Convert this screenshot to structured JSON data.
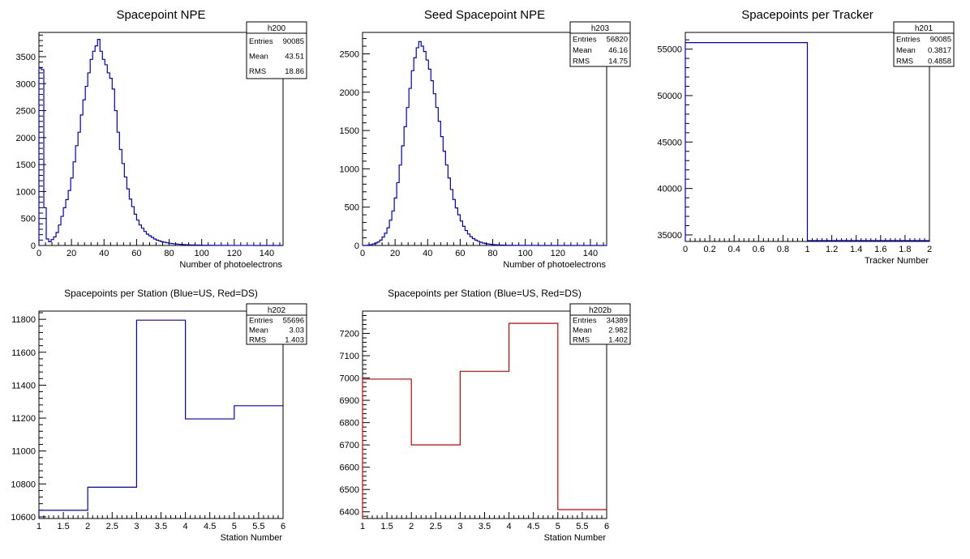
{
  "chart_data": [
    {
      "id": "h200",
      "type": "histogram",
      "title": "Spacepoint NPE",
      "xlabel": "Number of photoelectrons",
      "ylabel": "",
      "xlim": [
        0,
        150
      ],
      "ylim": [
        0,
        3950
      ],
      "xticks": [
        0,
        20,
        40,
        60,
        80,
        100,
        120,
        140
      ],
      "yticks": [
        0,
        500,
        1000,
        1500,
        2000,
        2500,
        3000,
        3500
      ],
      "line_color": "#0000cc",
      "bin_width": 1.5,
      "x_start": 0,
      "values": [
        3290,
        3260,
        700,
        120,
        70,
        110,
        160,
        240,
        380,
        540,
        700,
        850,
        1020,
        1250,
        1550,
        1850,
        2100,
        2420,
        2700,
        2950,
        3200,
        3450,
        3600,
        3700,
        3820,
        3600,
        3450,
        3350,
        3200,
        3100,
        2900,
        2500,
        2100,
        1780,
        1520,
        1270,
        1050,
        860,
        720,
        580,
        470,
        380,
        320,
        260,
        210,
        180,
        150,
        120,
        100,
        85,
        70,
        60,
        50,
        42,
        36,
        30,
        26,
        22,
        19,
        16,
        14,
        12,
        10,
        9,
        8,
        7,
        6,
        5,
        5,
        4,
        4,
        3,
        3,
        3,
        2,
        2,
        2,
        2,
        1,
        1,
        1,
        1,
        1,
        1,
        1,
        1,
        1,
        1,
        0,
        0,
        0,
        0,
        0,
        0,
        0,
        0,
        0,
        0,
        0,
        0
      ],
      "stats": {
        "name": "h200",
        "rows": [
          {
            "label": "Entries",
            "value": "90085"
          },
          {
            "label": "Mean",
            "value": "43.51"
          },
          {
            "label": "RMS",
            "value": "18.86"
          }
        ]
      }
    },
    {
      "id": "h203",
      "type": "histogram",
      "title": "Seed Spacepoint NPE",
      "xlabel": "Number of photoelectrons",
      "ylabel": "",
      "xlim": [
        0,
        150
      ],
      "ylim": [
        0,
        2780
      ],
      "xticks": [
        0,
        20,
        40,
        60,
        80,
        100,
        120,
        140
      ],
      "yticks": [
        0,
        500,
        1000,
        1500,
        2000,
        2500
      ],
      "line_color": "#0000cc",
      "bin_width": 1.5,
      "x_start": 0,
      "values": [
        0,
        2,
        5,
        10,
        20,
        30,
        45,
        70,
        110,
        160,
        230,
        330,
        450,
        620,
        820,
        1050,
        1300,
        1550,
        1800,
        2050,
        2280,
        2450,
        2580,
        2660,
        2600,
        2530,
        2420,
        2300,
        2150,
        1980,
        1800,
        1620,
        1420,
        1230,
        1050,
        880,
        730,
        600,
        490,
        400,
        320,
        250,
        195,
        150,
        115,
        90,
        70,
        55,
        42,
        32,
        25,
        20,
        16,
        12,
        10,
        8,
        6,
        5,
        4,
        3,
        3,
        2,
        2,
        2,
        1,
        1,
        1,
        1,
        1,
        1,
        1,
        1,
        0,
        0,
        0,
        0,
        0,
        0,
        0,
        0,
        0,
        0,
        0,
        0,
        0,
        0,
        0,
        0,
        0,
        0,
        0,
        0,
        0,
        0,
        0,
        0,
        0,
        0,
        0,
        0
      ],
      "stats": {
        "name": "h203",
        "rows": [
          {
            "label": "Entries",
            "value": "56820"
          },
          {
            "label": "Mean",
            "value": "46.16"
          },
          {
            "label": "RMS",
            "value": "14.75"
          }
        ]
      }
    },
    {
      "id": "h201",
      "type": "histogram",
      "title": "Spacepoints per Tracker",
      "xlabel": "Tracker Number",
      "ylabel": "",
      "xlim": [
        0,
        2
      ],
      "ylim": [
        34300,
        56800
      ],
      "xticks": [
        0,
        0.2,
        0.4,
        0.6,
        0.8,
        1,
        1.2,
        1.4,
        1.6,
        1.8,
        2
      ],
      "yticks": [
        35000,
        40000,
        45000,
        50000,
        55000
      ],
      "line_color": "#0000cc",
      "bin_width": 1,
      "x_start": 0,
      "values": [
        55696,
        34389
      ],
      "stats": {
        "name": "h201",
        "rows": [
          {
            "label": "Entries",
            "value": "90085"
          },
          {
            "label": "Mean",
            "value": "0.3817"
          },
          {
            "label": "RMS",
            "value": "0.4858"
          }
        ]
      }
    },
    {
      "id": "h202",
      "type": "histogram",
      "title": "Spacepoints per Station (Blue=US, Red=DS)",
      "xlabel": "Station Number",
      "ylabel": "",
      "xlim": [
        1,
        6
      ],
      "ylim": [
        10590,
        11850
      ],
      "xticks": [
        1,
        1.5,
        2,
        2.5,
        3,
        3.5,
        4,
        4.5,
        5,
        5.5,
        6
      ],
      "yticks": [
        10600,
        10800,
        11000,
        11200,
        11400,
        11600,
        11800
      ],
      "line_color": "#0000cc",
      "bin_width": 1,
      "x_start": 1,
      "values": [
        10640,
        10780,
        11795,
        11195,
        11275
      ],
      "stats": {
        "name": "h202",
        "rows": [
          {
            "label": "Entries",
            "value": "55696"
          },
          {
            "label": "Mean",
            "value": "3.03"
          },
          {
            "label": "RMS",
            "value": "1.403"
          }
        ]
      }
    },
    {
      "id": "h202b",
      "type": "histogram",
      "title": "Spacepoints per Station (Blue=US, Red=DS)",
      "xlabel": "Station Number",
      "ylabel": "",
      "xlim": [
        1,
        6
      ],
      "ylim": [
        6370,
        7300
      ],
      "xticks": [
        1,
        1.5,
        2,
        2.5,
        3,
        3.5,
        4,
        4.5,
        5,
        5.5,
        6
      ],
      "yticks": [
        6400,
        6500,
        6600,
        6700,
        6800,
        6900,
        7000,
        7100,
        7200
      ],
      "line_color": "#cc0000",
      "bin_width": 1,
      "x_start": 1,
      "values": [
        6995,
        6700,
        7030,
        7245,
        6410
      ],
      "stats": {
        "name": "h202b",
        "rows": [
          {
            "label": "Entries",
            "value": "34389"
          },
          {
            "label": "Mean",
            "value": "2.982"
          },
          {
            "label": "RMS",
            "value": "1.402"
          }
        ]
      }
    }
  ]
}
